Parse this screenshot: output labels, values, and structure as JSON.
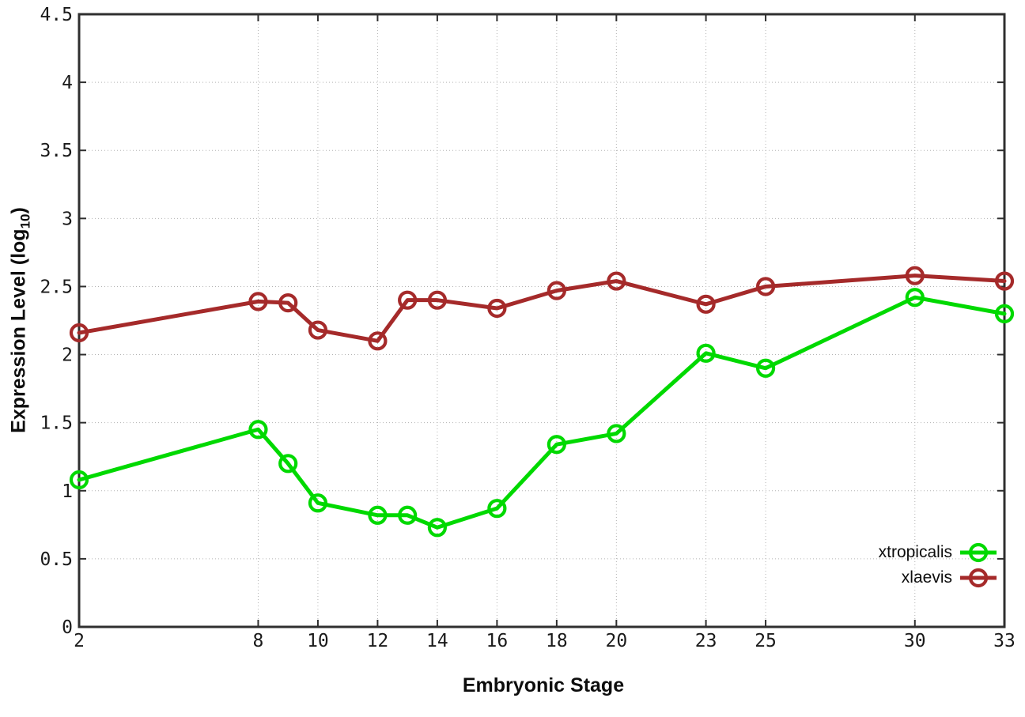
{
  "chart_data": {
    "type": "line",
    "xlabel": "Embryonic Stage",
    "ylabel": {
      "prefix": "Expression Level (log",
      "sub": "10",
      "suffix": ")"
    },
    "x": [
      2,
      8,
      9,
      10,
      12,
      13,
      14,
      16,
      18,
      20,
      23,
      25,
      30,
      33
    ],
    "x_tick_labels": [
      "2",
      "8",
      "10",
      "12",
      "14",
      "16",
      "18",
      "20",
      "23",
      "25",
      "30",
      "33"
    ],
    "x_tick_values": [
      2,
      8,
      10,
      12,
      14,
      16,
      18,
      20,
      23,
      25,
      30,
      33
    ],
    "y_tick_labels": [
      "0",
      "0.5",
      "1",
      "1.5",
      "2",
      "2.5",
      "3",
      "3.5",
      "4",
      "4.5"
    ],
    "y_tick_values": [
      0,
      0.5,
      1,
      1.5,
      2,
      2.5,
      3,
      3.5,
      4,
      4.5
    ],
    "xlim": [
      2,
      33
    ],
    "ylim": [
      0,
      4.5
    ],
    "grid": true,
    "grid_style": "dotted",
    "marker": "open-circle",
    "legend_position": "bottom-right-inside",
    "series": [
      {
        "name": "xtropicalis",
        "color": "#00d900",
        "values": [
          1.08,
          1.45,
          1.2,
          0.91,
          0.82,
          0.82,
          0.73,
          0.87,
          1.34,
          1.42,
          2.01,
          1.9,
          2.42,
          2.3
        ]
      },
      {
        "name": "xlaevis",
        "color": "#a52a2a",
        "values": [
          2.16,
          2.39,
          2.38,
          2.18,
          2.1,
          2.4,
          2.4,
          2.34,
          2.47,
          2.54,
          2.37,
          2.5,
          2.58,
          2.54
        ]
      }
    ],
    "axis_color": "#2f2f2f",
    "grid_color": "#b3b3b3",
    "text_color": "#1a1a1a"
  }
}
